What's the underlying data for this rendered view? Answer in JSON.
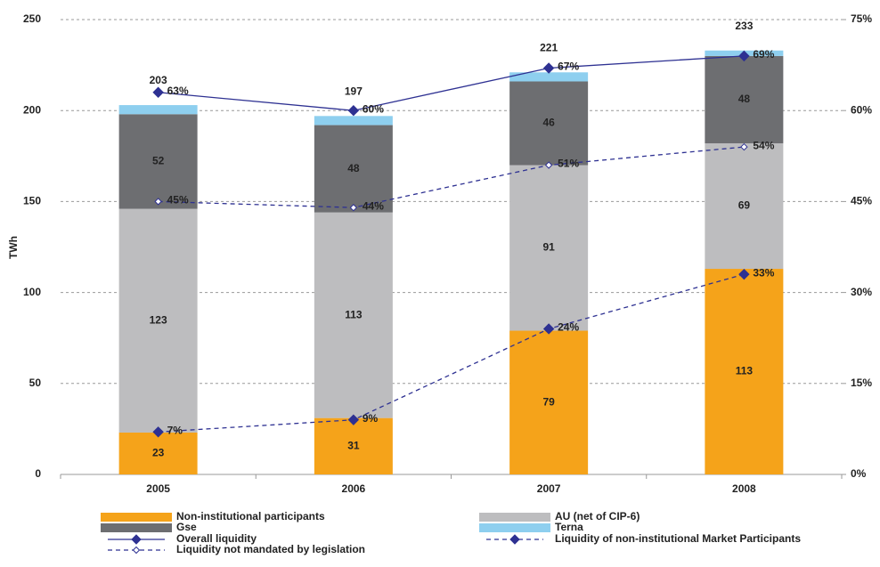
{
  "chart_data": {
    "type": "bar",
    "stacked": true,
    "categories": [
      "2005",
      "2006",
      "2007",
      "2008"
    ],
    "series": [
      {
        "name": "Non-institutional participants",
        "color": "#f5a31a",
        "values": [
          23,
          31,
          79,
          113
        ],
        "data_labels": true
      },
      {
        "name": "AU (net of CIP-6)",
        "color": "#bdbdbf",
        "values": [
          123,
          113,
          91,
          69
        ],
        "data_labels": true
      },
      {
        "name": "Gse",
        "color": "#6d6e71",
        "values": [
          52,
          48,
          46,
          48
        ],
        "data_labels": true
      },
      {
        "name": "Terna",
        "color": "#8ecfef",
        "values": [
          5,
          5,
          5,
          3
        ]
      },
      {
        "name": "Overall liquidity",
        "type": "line",
        "axis": "y2",
        "color": "#2e3192",
        "dash": false,
        "marker_fill": "#2e3192",
        "values": [
          63,
          60,
          67,
          69
        ],
        "value_labels": [
          "63%",
          "60%",
          "67%",
          "69%"
        ]
      },
      {
        "name": "Liquidity of non-institutional Market Participants",
        "type": "line",
        "axis": "y2",
        "color": "#2e3192",
        "dash": true,
        "marker_fill": "#2e3192",
        "values": [
          7,
          9,
          24,
          33
        ],
        "value_labels": [
          "7%",
          "9%",
          "24%",
          "33%"
        ]
      },
      {
        "name": "Liquidity not mandated by legislation",
        "type": "line",
        "axis": "y2",
        "color": "#2e3192",
        "dash": true,
        "marker_fill": "#ffffff",
        "values": [
          45,
          44,
          51,
          54
        ],
        "value_labels": [
          "45%",
          "44%",
          "51%",
          "54%"
        ]
      }
    ],
    "totals": [
      203,
      197,
      221,
      233
    ],
    "totals_color": "#f08a24",
    "ylabel": "TWh",
    "ylim": [
      0,
      250
    ],
    "yticks": [
      0,
      50,
      100,
      150,
      200,
      250
    ],
    "y2lim": [
      0,
      75
    ],
    "y2ticks": [
      {
        "value": 0,
        "label": "0%"
      },
      {
        "value": 15,
        "label": "15%"
      },
      {
        "value": 30,
        "label": "30%"
      },
      {
        "value": 45,
        "label": "45%"
      },
      {
        "value": 60,
        "label": "60%"
      },
      {
        "value": 75,
        "label": "75%"
      }
    ],
    "grid": true,
    "legend": "bottom"
  }
}
